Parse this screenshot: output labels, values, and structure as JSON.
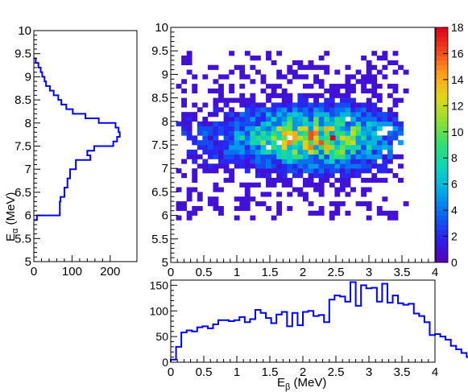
{
  "chart_data": [
    {
      "type": "heatmap",
      "panel": "main",
      "title": "",
      "xlabel": "",
      "ylabel": "",
      "xlim": [
        0,
        4
      ],
      "ylim": [
        5,
        10
      ],
      "x_ticks": [
        "0",
        "0.5",
        "1",
        "1.5",
        "2",
        "2.5",
        "3",
        "3.5",
        "4"
      ],
      "y_ticks": [
        "5",
        "5.5",
        "6",
        "6.5",
        "7",
        "7.5",
        "8",
        "8.5",
        "9",
        "9.5",
        "10"
      ],
      "bin_width_x": 0.08,
      "bin_width_y": 0.1,
      "populated_region": {
        "x": [
          0.08,
          3.6
        ],
        "y": [
          5.9,
          9.5
        ]
      },
      "peak": {
        "x": 2.45,
        "y": 7.65,
        "value": 18
      },
      "color_scale": {
        "min": 0,
        "max": 18,
        "ticks": [
          "0",
          "2",
          "4",
          "6",
          "8",
          "10",
          "12",
          "14",
          "16",
          "18"
        ],
        "palette": [
          "#5b00b4",
          "#2c1ff0",
          "#0a63f0",
          "#00a8e8",
          "#0ad4c0",
          "#2ede74",
          "#8de034",
          "#e0d81a",
          "#ffa21a",
          "#f2461c",
          "#e0001a"
        ]
      }
    },
    {
      "type": "histogram",
      "panel": "left-projection",
      "orientation": "horizontal",
      "ylabel_main": "E",
      "ylabel_sub": "α",
      "ylabel_unit": "(MeV)",
      "ylim": [
        5,
        10
      ],
      "xlim": [
        0,
        270
      ],
      "x_ticks": [
        "0",
        "100",
        "200"
      ],
      "y_ticks": [
        "5",
        "5.5",
        "6",
        "6.5",
        "7",
        "7.5",
        "8",
        "8.5",
        "9",
        "9.5",
        "10"
      ],
      "bin_edges": [
        5.9,
        6.0,
        6.1,
        6.2,
        6.3,
        6.4,
        6.5,
        6.6,
        6.7,
        6.8,
        6.9,
        7.0,
        7.1,
        7.2,
        7.3,
        7.4,
        7.5,
        7.6,
        7.7,
        7.8,
        7.9,
        8.0,
        8.1,
        8.2,
        8.3,
        8.4,
        8.5,
        8.6,
        8.7,
        8.8,
        8.9,
        9.0,
        9.1,
        9.2,
        9.3,
        9.4
      ],
      "counts": [
        8,
        68,
        68,
        68,
        70,
        80,
        80,
        88,
        88,
        95,
        95,
        110,
        110,
        148,
        140,
        158,
        208,
        218,
        225,
        222,
        214,
        170,
        135,
        102,
        85,
        72,
        64,
        52,
        42,
        32,
        28,
        22,
        18,
        12,
        5
      ],
      "color": "#0000ff"
    },
    {
      "type": "histogram",
      "panel": "bottom-projection",
      "orientation": "vertical",
      "xlabel_main": "E",
      "xlabel_sub": "β",
      "xlabel_unit": "(MeV)",
      "xlim": [
        0,
        4
      ],
      "ylim": [
        0,
        160
      ],
      "x_ticks": [
        "0",
        "0.5",
        "1",
        "1.5",
        "2",
        "2.5",
        "3",
        "3.5",
        "4"
      ],
      "y_ticks": [
        "0",
        "50",
        "100",
        "150"
      ],
      "bin_width": 0.08,
      "bin_start": 0.0,
      "counts": [
        5,
        30,
        58,
        62,
        60,
        68,
        70,
        66,
        74,
        82,
        82,
        80,
        82,
        88,
        78,
        84,
        102,
        96,
        86,
        76,
        93,
        98,
        70,
        96,
        72,
        98,
        100,
        90,
        92,
        78,
        122,
        130,
        128,
        118,
        156,
        110,
        150,
        144,
        145,
        118,
        153,
        116,
        130,
        115,
        112,
        114,
        95,
        90,
        78,
        53,
        55,
        50,
        44,
        32,
        25,
        18,
        10,
        5,
        4,
        3,
        2,
        1,
        1
      ],
      "color": "#0000ff"
    }
  ]
}
